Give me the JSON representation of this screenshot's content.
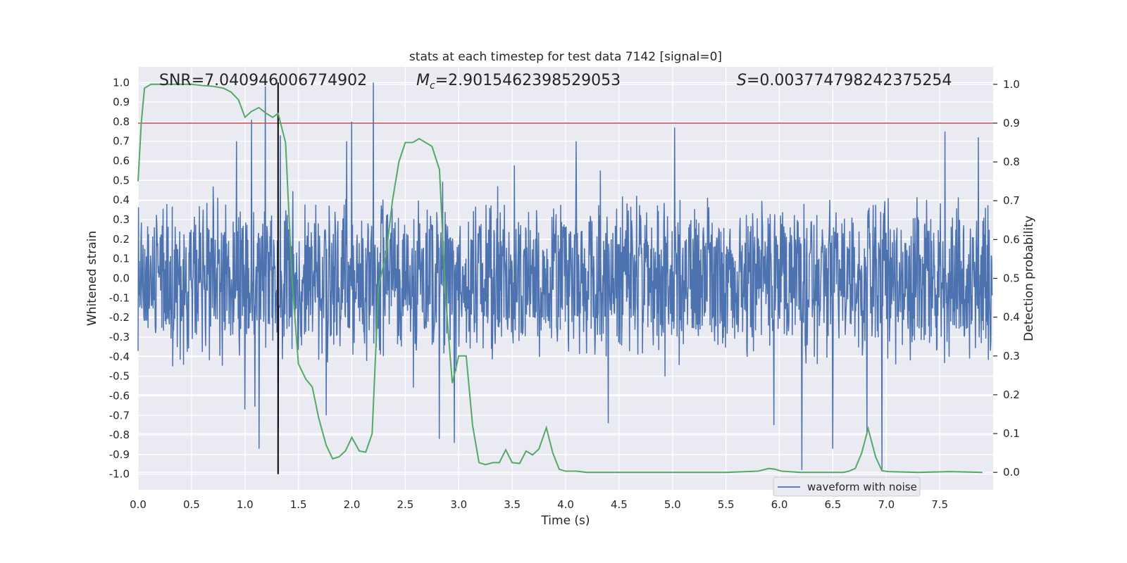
{
  "chart_data": {
    "type": "line",
    "title": "stats at each timestep for test data 7142 [signal=0]",
    "xlabel": "Time (s)",
    "ylabel": "Whitened strain",
    "y2label": "Detection probability",
    "xlim": [
      0.0,
      8.0
    ],
    "ylim": [
      -1.08,
      1.08
    ],
    "y2lim": [
      -0.045,
      1.045
    ],
    "xticks": [
      "0.0",
      "0.5",
      "1.0",
      "1.5",
      "2.0",
      "2.5",
      "3.0",
      "3.5",
      "4.0",
      "4.5",
      "5.0",
      "5.5",
      "6.0",
      "6.5",
      "7.0",
      "7.5"
    ],
    "yticks": [
      "1.0",
      "0.9",
      "0.8",
      "0.7",
      "0.6",
      "0.5",
      "0.4",
      "0.3",
      "0.2",
      "0.1",
      "0.0",
      "-0.1",
      "-0.2",
      "-0.3",
      "-0.4",
      "-0.5",
      "-0.6",
      "-0.7",
      "-0.8",
      "-0.9",
      "-1.0"
    ],
    "y2ticks": [
      "1.0",
      "0.9",
      "0.8",
      "0.7",
      "0.6",
      "0.5",
      "0.4",
      "0.3",
      "0.2",
      "0.1",
      "0.0"
    ],
    "grid": true,
    "legend_position": "lower-right",
    "annotations": {
      "snr": "SNR=7.040946006774902",
      "mc_symbol": "M",
      "mc_sub": "c",
      "mc_value": "=2.9015462398529053",
      "s_symbol": "S",
      "s_value": "=0.003774798242375254"
    },
    "threshold_line": {
      "axis": "detection probability",
      "value": 0.9,
      "color": "#c44e52"
    },
    "marker_line": {
      "time": 1.31,
      "ymin": -1.0,
      "ymax": 1.0,
      "color": "#000000"
    },
    "series": [
      {
        "name": "waveform with noise",
        "axis": "left",
        "color": "#4c72b0",
        "t_start": 0.0,
        "t_end": 7.99,
        "samples": 2048,
        "typical_amplitude": 0.4,
        "peaks": [
          {
            "t": 0.92,
            "v": 0.7
          },
          {
            "t": 1.0,
            "v": -0.67
          },
          {
            "t": 1.06,
            "v": 0.81
          },
          {
            "t": 1.13,
            "v": -0.87
          },
          {
            "t": 1.19,
            "v": 0.98
          },
          {
            "t": 1.31,
            "v": -0.77
          },
          {
            "t": 1.33,
            "v": 0.73
          },
          {
            "t": 1.76,
            "v": -0.7
          },
          {
            "t": 1.95,
            "v": 0.7
          },
          {
            "t": 2.0,
            "v": 0.8
          },
          {
            "t": 2.2,
            "v": 1.0
          },
          {
            "t": 2.82,
            "v": -0.82
          },
          {
            "t": 2.96,
            "v": -0.84
          },
          {
            "t": 4.1,
            "v": 0.7
          },
          {
            "t": 4.4,
            "v": -0.74
          },
          {
            "t": 5.02,
            "v": 0.77
          },
          {
            "t": 5.95,
            "v": -0.75
          },
          {
            "t": 6.21,
            "v": -0.98
          },
          {
            "t": 6.5,
            "v": -0.87
          },
          {
            "t": 6.82,
            "v": -0.8
          },
          {
            "t": 6.96,
            "v": -0.98
          },
          {
            "t": 7.55,
            "v": 0.75
          },
          {
            "t": 7.86,
            "v": 0.72
          }
        ]
      },
      {
        "name": "detection probability",
        "axis": "right",
        "color": "#55a868",
        "x": [
          0.0,
          0.03,
          0.06,
          0.12,
          0.25,
          0.5,
          0.6,
          0.7,
          0.8,
          0.87,
          0.94,
          1.0,
          1.06,
          1.13,
          1.2,
          1.26,
          1.31,
          1.38,
          1.44,
          1.5,
          1.57,
          1.63,
          1.69,
          1.76,
          1.82,
          1.88,
          1.94,
          2.0,
          2.07,
          2.13,
          2.19,
          2.25,
          2.32,
          2.38,
          2.44,
          2.5,
          2.57,
          2.63,
          2.69,
          2.75,
          2.82,
          2.88,
          2.94,
          3.0,
          3.07,
          3.13,
          3.19,
          3.25,
          3.32,
          3.38,
          3.44,
          3.5,
          3.57,
          3.63,
          3.69,
          3.75,
          3.82,
          3.88,
          3.94,
          4.0,
          4.1,
          4.2,
          4.5,
          5.0,
          5.5,
          5.8,
          5.9,
          5.96,
          6.02,
          6.2,
          6.5,
          6.6,
          6.65,
          6.71,
          6.77,
          6.83,
          6.9,
          6.96,
          7.02,
          7.3,
          7.6,
          7.9
        ],
        "y": [
          0.75,
          0.9,
          0.99,
          1.0,
          1.0,
          1.0,
          0.997,
          0.995,
          0.99,
          0.98,
          0.96,
          0.915,
          0.93,
          0.94,
          0.925,
          0.915,
          0.925,
          0.85,
          0.5,
          0.28,
          0.24,
          0.22,
          0.14,
          0.07,
          0.035,
          0.04,
          0.055,
          0.09,
          0.055,
          0.052,
          0.1,
          0.48,
          0.56,
          0.7,
          0.8,
          0.85,
          0.85,
          0.86,
          0.85,
          0.84,
          0.78,
          0.44,
          0.23,
          0.3,
          0.3,
          0.12,
          0.025,
          0.02,
          0.025,
          0.025,
          0.058,
          0.025,
          0.023,
          0.055,
          0.045,
          0.06,
          0.115,
          0.05,
          0.008,
          0.003,
          0.003,
          0.0,
          0.0,
          0.0,
          0.0,
          0.003,
          0.01,
          0.008,
          0.003,
          0.0,
          0.0,
          0.0,
          0.003,
          0.01,
          0.05,
          0.113,
          0.04,
          0.004,
          0.002,
          0.0,
          0.002,
          0.0
        ]
      }
    ]
  }
}
